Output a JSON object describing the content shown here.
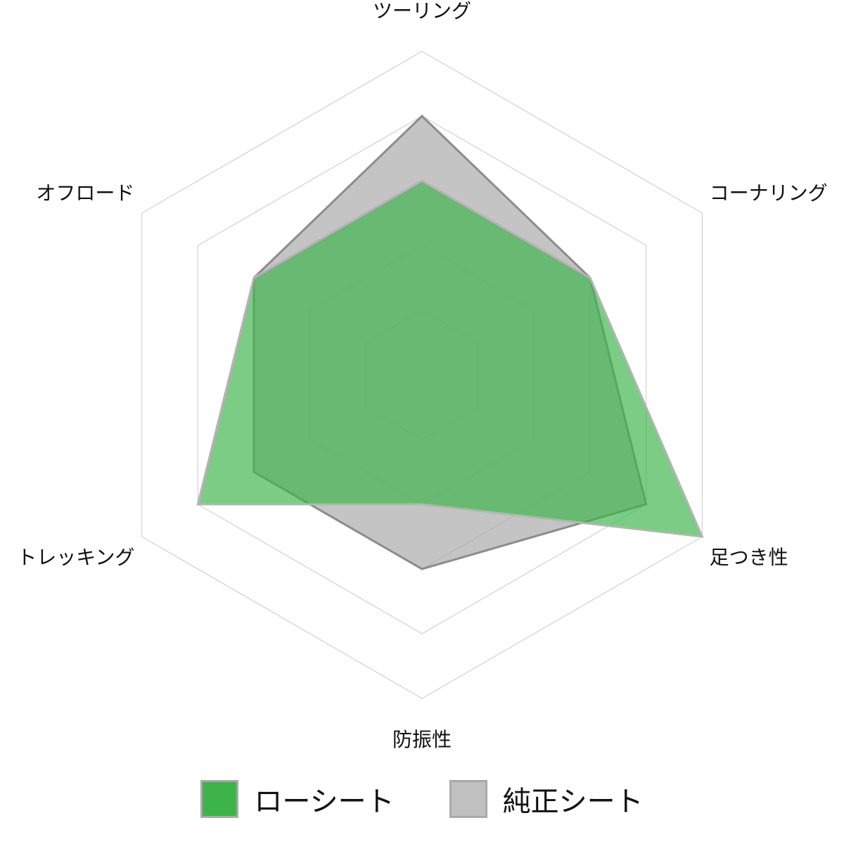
{
  "chart_data": {
    "type": "radar",
    "title": "",
    "categories": [
      "ツーリング",
      "コーナリング",
      "足つき性",
      "防振性",
      "トレッキング",
      "オフロード"
    ],
    "range": [
      0,
      5
    ],
    "grid_levels": [
      1,
      2,
      3,
      4,
      5
    ],
    "series": [
      {
        "name": "純正シート",
        "values": [
          4,
          3,
          4,
          3,
          3,
          3
        ],
        "fill": "#a8a8a8",
        "stroke": "#8c8c8c"
      },
      {
        "name": "ローシート",
        "values": [
          3,
          3,
          5,
          2,
          4,
          3
        ],
        "fill": "#3cb44a",
        "stroke": "#b4b4b4"
      }
    ],
    "legend": {
      "placement": "bottom",
      "items": [
        {
          "name": "ローシート",
          "color": "#3cb44a"
        },
        {
          "name": "純正シート",
          "color": "#c0c0c0"
        }
      ]
    }
  }
}
